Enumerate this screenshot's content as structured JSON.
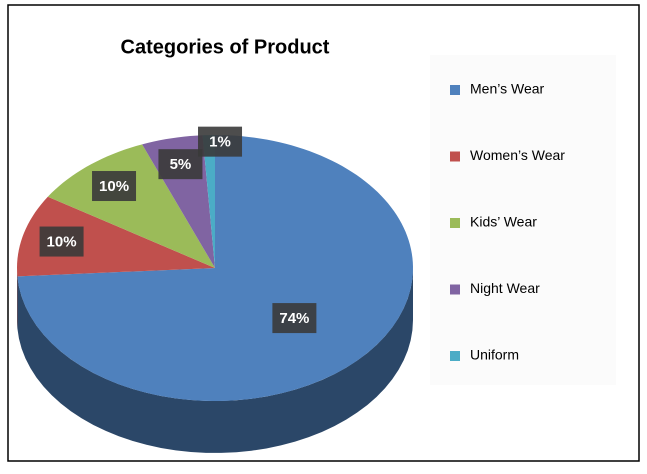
{
  "chart_data": {
    "type": "pie",
    "title": "Categories of Product",
    "categories": [
      "Men’s Wear",
      "Women’s Wear",
      "Kids’ Wear",
      "Night Wear",
      "Uniform"
    ],
    "values": [
      74,
      10,
      10,
      5,
      1
    ],
    "value_labels": [
      "74%",
      "10%",
      "10%",
      "5%",
      "1%"
    ],
    "colors": [
      "#4f81bd",
      "#c0504d",
      "#9bbb59",
      "#8064a2",
      "#4bacc6"
    ],
    "legend": "right"
  }
}
